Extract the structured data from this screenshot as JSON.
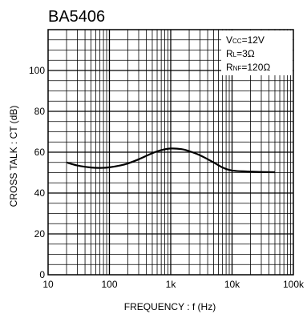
{
  "chart_data": {
    "type": "line",
    "title": "BA5406",
    "xlabel": "FREQUENCY : f (Hz)",
    "ylabel": "CROSS TALK : CT (dB)",
    "xscale": "log",
    "xlim": [
      10,
      100000
    ],
    "ylim": [
      0,
      120
    ],
    "grid": true,
    "x_ticks": [
      {
        "value": 10,
        "label": "10"
      },
      {
        "value": 100,
        "label": "100"
      },
      {
        "value": 1000,
        "label": "1k"
      },
      {
        "value": 10000,
        "label": "10k"
      },
      {
        "value": 100000,
        "label": "100k"
      }
    ],
    "y_ticks": [
      {
        "value": 0,
        "label": "0"
      },
      {
        "value": 20,
        "label": "20"
      },
      {
        "value": 40,
        "label": "40"
      },
      {
        "value": 60,
        "label": "60"
      },
      {
        "value": 80,
        "label": "80"
      },
      {
        "value": 100,
        "label": "100"
      }
    ],
    "annotations": [
      {
        "label": "Vcc=12V",
        "main": "V",
        "sub": "CC",
        "rest": "=12V"
      },
      {
        "label": "RL=3Ω",
        "main": "R",
        "sub": "L",
        "rest": "=3Ω"
      },
      {
        "label": "RNF=120Ω",
        "main": "R",
        "sub": "NF",
        "rest": "=120Ω"
      }
    ],
    "series": [
      {
        "x": [
          20,
          30,
          50,
          70,
          100,
          150,
          200,
          300,
          500,
          700,
          1000,
          1500,
          2000,
          3000,
          5000,
          7000,
          10000,
          20000,
          30000,
          50000
        ],
        "y": [
          55,
          53.5,
          52.5,
          52.3,
          52.6,
          53.5,
          54.5,
          56.5,
          59.5,
          61,
          61.8,
          61.5,
          60.5,
          58.5,
          55,
          52.5,
          51,
          50.5,
          50.3,
          50.2
        ]
      }
    ]
  }
}
